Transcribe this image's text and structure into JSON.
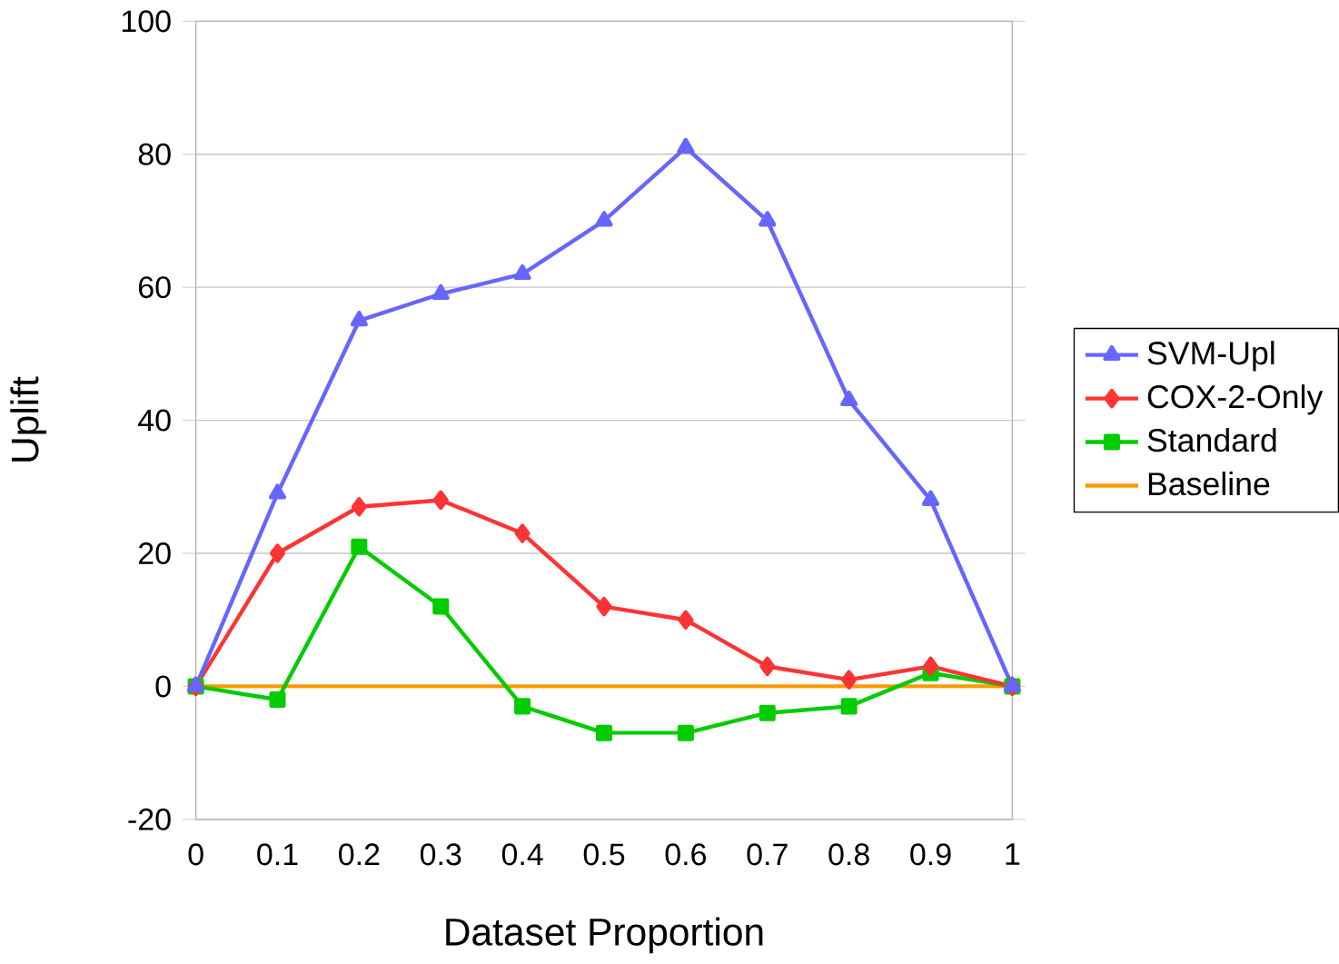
{
  "chart_data": {
    "type": "line",
    "xlabel": "Dataset Proportion",
    "ylabel": "Uplift",
    "x": [
      0,
      0.1,
      0.2,
      0.3,
      0.4,
      0.5,
      0.6,
      0.7,
      0.8,
      0.9,
      1
    ],
    "series": [
      {
        "name": "SVM-Upl",
        "color": "#6666ff",
        "marker": "triangle",
        "values": [
          0,
          29,
          55,
          59,
          62,
          70,
          81,
          70,
          43,
          28,
          0
        ]
      },
      {
        "name": "COX-2-Only",
        "color": "#ff3333",
        "marker": "diamond",
        "values": [
          0,
          20,
          27,
          28,
          23,
          12,
          10,
          3,
          1,
          3,
          0
        ]
      },
      {
        "name": "Standard",
        "color": "#00cc00",
        "marker": "square",
        "values": [
          0,
          -2,
          21,
          12,
          -3,
          -7,
          -7,
          -4,
          -3,
          2,
          0
        ]
      },
      {
        "name": "Baseline",
        "color": "#ff9900",
        "marker": "none",
        "values": [
          0,
          0,
          0,
          0,
          0,
          0,
          0,
          0,
          0,
          0,
          0
        ]
      }
    ],
    "xlim": [
      0,
      1
    ],
    "ylim": [
      -20,
      100
    ],
    "xticks": [
      0,
      0.1,
      0.2,
      0.3,
      0.4,
      0.5,
      0.6,
      0.7,
      0.8,
      0.9,
      1
    ],
    "yticks": [
      -20,
      0,
      20,
      40,
      60,
      80,
      100
    ],
    "grid": "y",
    "legend": "right",
    "line_style": "solid"
  }
}
